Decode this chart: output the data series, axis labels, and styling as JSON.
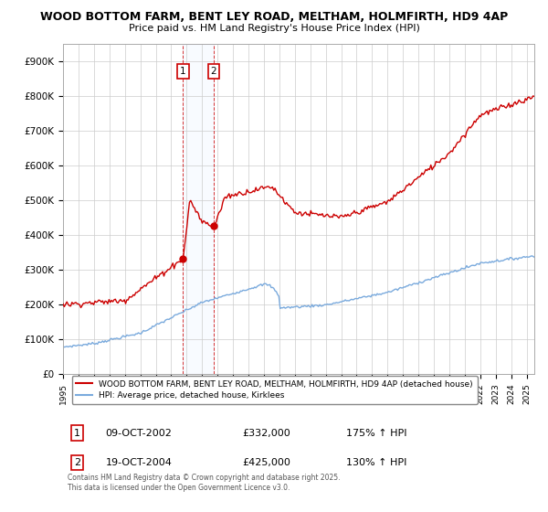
{
  "title_line1": "WOOD BOTTOM FARM, BENT LEY ROAD, MELTHAM, HOLMFIRTH, HD9 4AP",
  "title_line2": "Price paid vs. HM Land Registry's House Price Index (HPI)",
  "ylim": [
    0,
    950000
  ],
  "yticks": [
    0,
    100000,
    200000,
    300000,
    400000,
    500000,
    600000,
    700000,
    800000,
    900000
  ],
  "ytick_labels": [
    "£0",
    "£100K",
    "£200K",
    "£300K",
    "£400K",
    "£500K",
    "£600K",
    "£700K",
    "£800K",
    "£900K"
  ],
  "legend_entry1": "WOOD BOTTOM FARM, BENT LEY ROAD, MELTHAM, HOLMFIRTH, HD9 4AP (detached house)",
  "legend_entry2": "HPI: Average price, detached house, Kirklees",
  "sale1_label": "1",
  "sale1_date": "09-OCT-2002",
  "sale1_price": "£332,000",
  "sale1_hpi": "175% ↑ HPI",
  "sale2_label": "2",
  "sale2_date": "19-OCT-2004",
  "sale2_price": "£425,000",
  "sale2_hpi": "130% ↑ HPI",
  "copyright_text": "Contains HM Land Registry data © Crown copyright and database right 2025.\nThis data is licensed under the Open Government Licence v3.0.",
  "red_color": "#cc0000",
  "blue_color": "#7aaadd",
  "background_color": "#ffffff",
  "grid_color": "#cccccc",
  "shade_color": "#ddeeff",
  "sale1_x": 2002.79,
  "sale2_x": 2004.79,
  "xmin": 1995.0,
  "xmax": 2025.5
}
